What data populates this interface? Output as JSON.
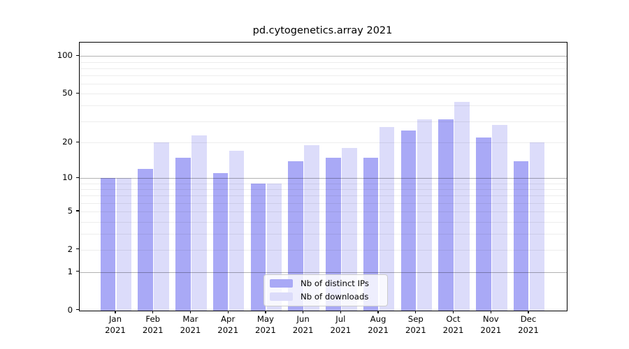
{
  "chart_data": {
    "type": "bar",
    "title": "pd.cytogenetics.array 2021",
    "categories": [
      "Jan 2021",
      "Feb 2021",
      "Mar 2021",
      "Apr 2021",
      "May 2021",
      "Jun 2021",
      "Jul 2021",
      "Aug 2021",
      "Sep 2021",
      "Oct 2021",
      "Nov 2021",
      "Dec 2021"
    ],
    "series": [
      {
        "name": "Nb of distinct IPs",
        "color": "#a9a9f6",
        "values": [
          10,
          12,
          15,
          11,
          9,
          14,
          15,
          15,
          25,
          31,
          22,
          14
        ]
      },
      {
        "name": "Nb of downloads",
        "color": "#dcdcfa",
        "values": [
          10,
          20,
          23,
          17,
          9,
          19,
          18,
          27,
          31,
          43,
          28,
          20
        ]
      }
    ],
    "xlabel": "",
    "ylabel": "",
    "yscale": "log1p",
    "yticks": [
      0,
      1,
      2,
      5,
      10,
      20,
      50,
      100
    ],
    "ylim": [
      0,
      127
    ],
    "grid": true,
    "grid_major_lines": [
      1,
      10,
      100
    ],
    "grid_minor_lines": [
      2,
      3,
      4,
      5,
      6,
      7,
      8,
      9,
      20,
      30,
      40,
      50,
      60,
      70,
      80,
      90
    ],
    "legend_position": "lower center"
  }
}
